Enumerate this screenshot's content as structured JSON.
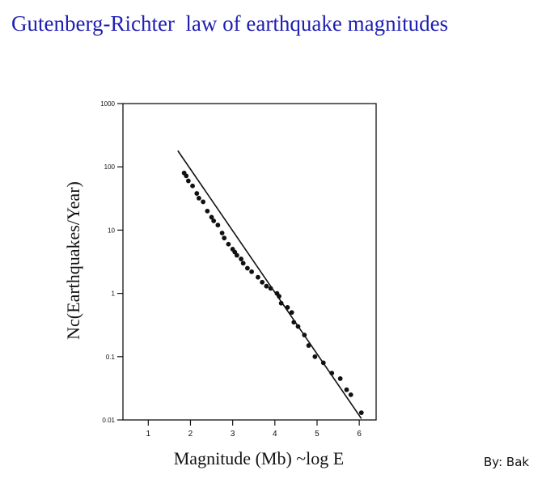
{
  "title": "Gutenberg-Richter  law of earthquake magnitudes",
  "credit": "By: Bak",
  "chart_data": {
    "type": "scatter",
    "xlabel": "Magnitude (Mb) ~log E",
    "ylabel": "Nc(Earthquakes/Year)",
    "x_scale": "linear",
    "y_scale": "log",
    "xlim": [
      0.4,
      6.4
    ],
    "ylim": [
      0.01,
      1000
    ],
    "x_ticks": [
      "1",
      "2",
      "3",
      "4",
      "5",
      "6"
    ],
    "y_ticks": [
      "0.01",
      "0.1",
      "1",
      "10",
      "100",
      "1000"
    ],
    "grid": false,
    "fit_line": {
      "x": [
        1.7,
        6.05
      ],
      "y": [
        180,
        0.0105
      ]
    },
    "points": {
      "x": [
        1.85,
        1.9,
        1.95,
        2.05,
        2.15,
        2.2,
        2.3,
        2.4,
        2.5,
        2.55,
        2.65,
        2.75,
        2.8,
        2.9,
        3.0,
        3.05,
        3.1,
        3.2,
        3.25,
        3.35,
        3.45,
        3.6,
        3.7,
        3.8,
        3.9,
        4.05,
        4.1,
        4.15,
        4.3,
        4.4,
        4.45,
        4.55,
        4.7,
        4.8,
        4.95,
        5.15,
        5.35,
        5.55,
        5.7,
        5.8,
        6.05
      ],
      "y": [
        80,
        72,
        60,
        50,
        38,
        32,
        28,
        20,
        16,
        14,
        12,
        9,
        7.5,
        6,
        5,
        4.5,
        4,
        3.5,
        3,
        2.5,
        2.2,
        1.8,
        1.5,
        1.3,
        1.2,
        1.0,
        0.9,
        0.7,
        0.6,
        0.5,
        0.35,
        0.3,
        0.22,
        0.15,
        0.1,
        0.08,
        0.055,
        0.045,
        0.03,
        0.025,
        0.013
      ]
    }
  }
}
